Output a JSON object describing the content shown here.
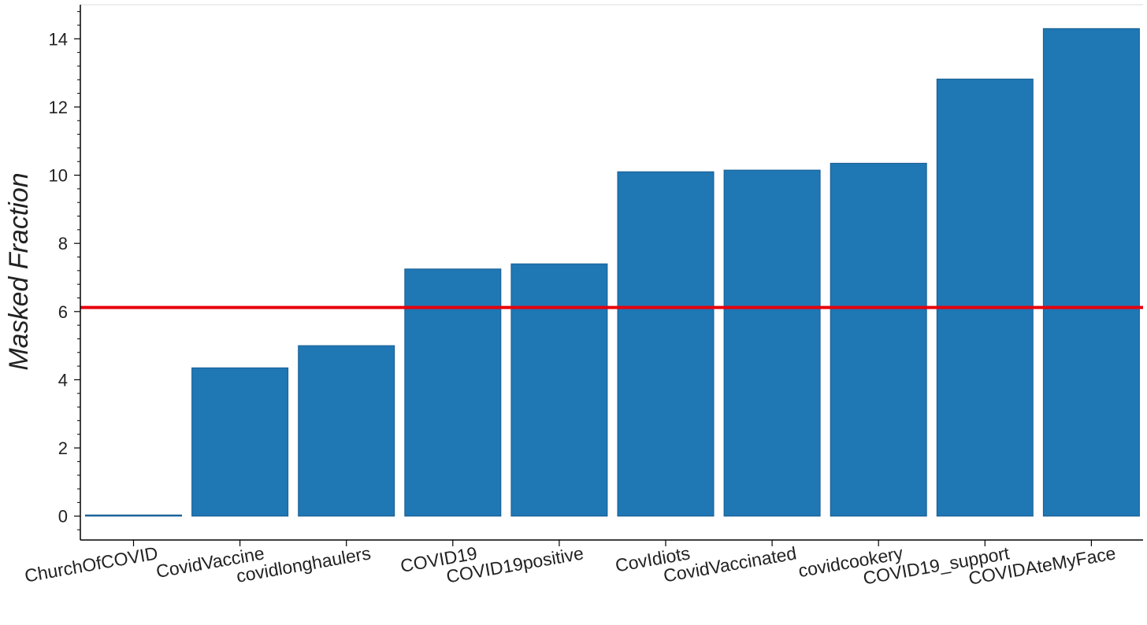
{
  "chart_data": {
    "type": "bar",
    "title": "",
    "xlabel": "",
    "ylabel": "Masked Fraction",
    "categories": [
      "ChurchOfCOVID",
      "CovidVaccine",
      "covidlonghaulers",
      "COVID19",
      "COVID19positive",
      "CovIdiots",
      "CovidVaccinated",
      "covidcookery",
      "COVID19_support",
      "COVIDAteMyFace"
    ],
    "values": [
      0.0,
      4.35,
      5.0,
      7.25,
      7.4,
      10.1,
      10.15,
      10.35,
      12.82,
      14.3
    ],
    "ylim": [
      -0.7,
      15
    ],
    "yticks": [
      0,
      2,
      4,
      6,
      8,
      10,
      12,
      14
    ],
    "yticks_minor_step": 0.4,
    "reference_line": {
      "y": 6.12,
      "color": "#e8000b"
    },
    "bar_color": "#1f77b4",
    "bar_edge_color": "#1a5e92",
    "grid": false,
    "legend": "none"
  }
}
